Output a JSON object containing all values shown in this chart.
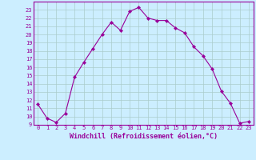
{
  "x": [
    0,
    1,
    2,
    3,
    4,
    5,
    6,
    7,
    8,
    9,
    10,
    11,
    12,
    13,
    14,
    15,
    16,
    17,
    18,
    19,
    20,
    21,
    22,
    23
  ],
  "y": [
    11.5,
    9.8,
    9.3,
    10.4,
    14.8,
    16.6,
    18.3,
    20.0,
    21.5,
    20.5,
    22.8,
    23.3,
    22.0,
    21.7,
    21.7,
    20.8,
    20.2,
    18.5,
    17.4,
    15.8,
    13.1,
    11.6,
    9.2,
    9.4
  ],
  "line_color": "#990099",
  "marker": "D",
  "marker_size": 2.2,
  "bg_color": "#cceeff",
  "grid_color": "#aacccc",
  "xlabel": "Windchill (Refroidissement éolien,°C)",
  "xlabel_color": "#990099",
  "ylim": [
    9,
    24
  ],
  "xlim": [
    -0.5,
    23.5
  ],
  "yticks": [
    9,
    10,
    11,
    12,
    13,
    14,
    15,
    16,
    17,
    18,
    19,
    20,
    21,
    22,
    23
  ],
  "xticks": [
    0,
    1,
    2,
    3,
    4,
    5,
    6,
    7,
    8,
    9,
    10,
    11,
    12,
    13,
    14,
    15,
    16,
    17,
    18,
    19,
    20,
    21,
    22,
    23
  ],
  "tick_color": "#990099",
  "tick_fontsize": 5.0,
  "xlabel_fontsize": 6.0,
  "spine_color": "#990099"
}
